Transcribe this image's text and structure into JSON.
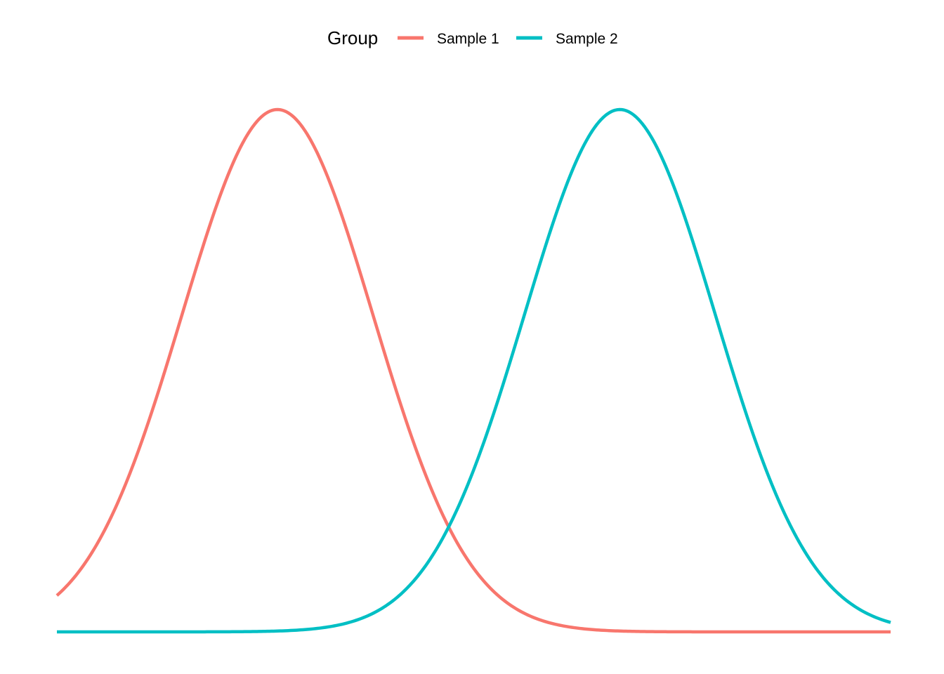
{
  "chart_data": {
    "type": "line",
    "title": "",
    "xlabel": "",
    "ylabel": "",
    "grid": false,
    "axes_visible": false,
    "legend": {
      "title": "Group",
      "placement": "top"
    },
    "xlim": [
      -2.77,
      7.7
    ],
    "ylim": [
      0,
      1
    ],
    "series": [
      {
        "name": "Sample 1",
        "color": "#F8766D",
        "distribution": "normal",
        "mean": 0,
        "sd": 1.2
      },
      {
        "name": "Sample 2",
        "color": "#00BFC4",
        "distribution": "normal",
        "mean": 4.3,
        "sd": 1.2
      }
    ]
  }
}
